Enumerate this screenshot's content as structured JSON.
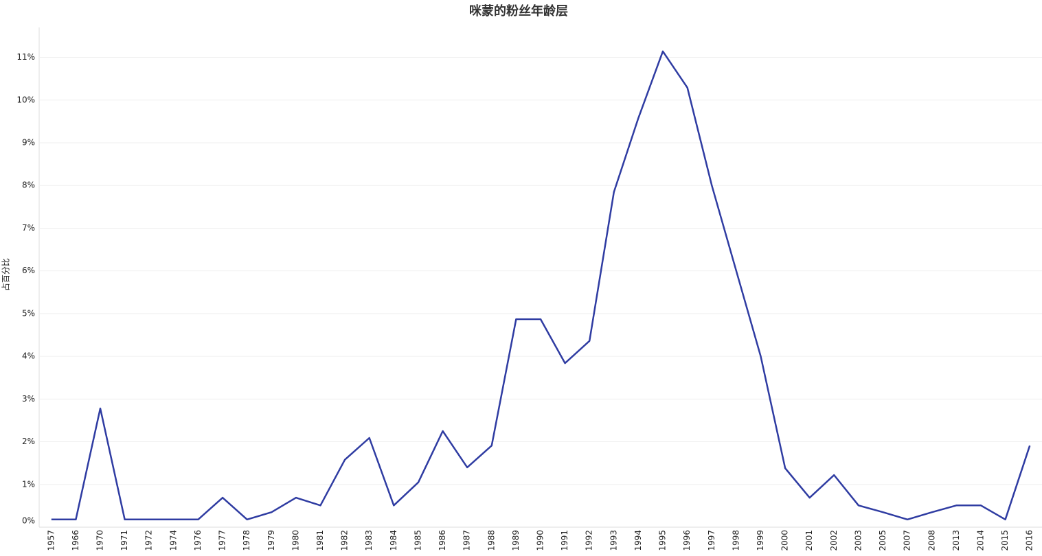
{
  "chart_data": {
    "type": "line",
    "title": "咪蒙的粉丝年龄层",
    "y_label": "占百分比",
    "categories": [
      "1957",
      "1966",
      "1970",
      "1971",
      "1972",
      "1974",
      "1976",
      "1977",
      "1978",
      "1979",
      "1980",
      "1981",
      "1982",
      "1983",
      "1984",
      "1985",
      "1986",
      "1987",
      "1988",
      "1989",
      "1990",
      "1991",
      "1992",
      "1993",
      "1994",
      "1995",
      "1996",
      "1997",
      "1998",
      "1999",
      "2000",
      "2001",
      "2002",
      "2003",
      "2005",
      "2007",
      "2008",
      "2013",
      "2014",
      "2015",
      "2016"
    ],
    "series": [
      {
        "name": "占百分比",
        "color": "#2f3ca2",
        "values": [
          0.18,
          0.18,
          2.78,
          0.18,
          0.18,
          0.18,
          0.18,
          0.69,
          0.18,
          0.35,
          0.69,
          0.51,
          1.58,
          2.09,
          0.51,
          1.05,
          2.25,
          1.4,
          1.91,
          4.87,
          4.87,
          3.84,
          4.36,
          7.85,
          9.58,
          11.14,
          10.29,
          8.0,
          6.0,
          4.0,
          1.38,
          0.69,
          1.22,
          0.51,
          0.35,
          0.18,
          0.35,
          0.51,
          0.51,
          0.18,
          1.91
        ]
      }
    ],
    "ylim": [
      0,
      11.7
    ],
    "yticks": [
      {
        "value": 0,
        "label": "0%"
      },
      {
        "value": 1,
        "label": "1%"
      },
      {
        "value": 2,
        "label": "2%"
      },
      {
        "value": 3,
        "label": "3%"
      },
      {
        "value": 4,
        "label": "4%"
      },
      {
        "value": 5,
        "label": "5%"
      },
      {
        "value": 6,
        "label": "6%"
      },
      {
        "value": 7,
        "label": "7%"
      },
      {
        "value": 8,
        "label": "8%"
      },
      {
        "value": 9,
        "label": "9%"
      },
      {
        "value": 10,
        "label": "10%"
      },
      {
        "value": 11,
        "label": "11%"
      }
    ],
    "grid": true
  }
}
